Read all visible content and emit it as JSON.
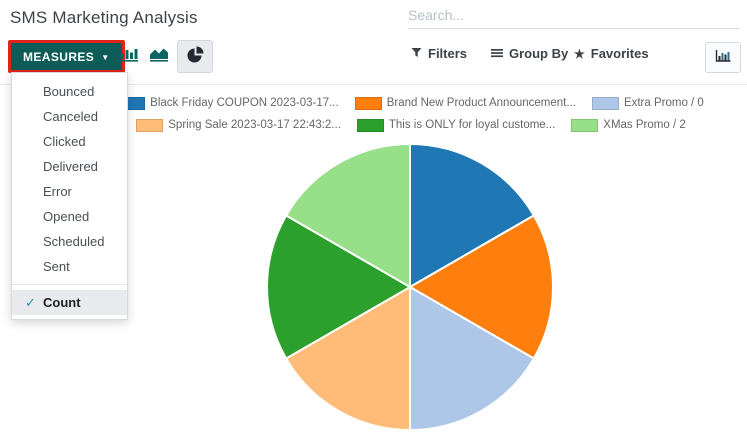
{
  "header": {
    "title": "SMS Marketing Analysis",
    "search": {
      "placeholder": "Search..."
    }
  },
  "toolbar": {
    "measures": {
      "label": "MEASURES",
      "caret": "▼",
      "highlight_color": "#e0241c",
      "button_color": "#0e5c58"
    },
    "chart_type_buttons": {
      "active": "pie"
    },
    "filters_label": "Filters",
    "group_by_label": "Group By",
    "favorites_label": "Favorites",
    "favorites_star": "★"
  },
  "measures_menu": {
    "items": [
      "Bounced",
      "Canceled",
      "Clicked",
      "Delivered",
      "Error",
      "Opened",
      "Scheduled",
      "Sent"
    ],
    "checked_item": {
      "label": "Count",
      "checkmark": "✓"
    }
  },
  "legend": {
    "rows": [
      {
        "items": [
          {
            "label": "Black Friday COUPON 2023-03-17...",
            "color": "#1f77b4"
          },
          {
            "label": "Brand New Product Announcement...",
            "color": "#ff7f0e"
          },
          {
            "label": "Extra Promo / 0",
            "color": "#aec7e8"
          }
        ]
      },
      {
        "items": [
          {
            "label": "Spring Sale 2023-03-17 22:43:2...",
            "color": "#ffbb78"
          },
          {
            "label": "This is ONLY for loyal custome...",
            "color": "#2ca02c"
          },
          {
            "label": "XMas Promo / 2",
            "color": "#98df8a"
          }
        ]
      }
    ]
  },
  "chart_data": {
    "type": "pie",
    "title": "SMS Marketing Analysis",
    "measure": "Count",
    "labels": [
      "Black Friday COUPON 2023-03-17...",
      "Brand New Product Announcement...",
      "Extra Promo / 0",
      "Spring Sale 2023-03-17 22:43:2...",
      "This is ONLY for loyal custome...",
      "XMas Promo / 2"
    ],
    "values": [
      1,
      1,
      1,
      1,
      1,
      1
    ],
    "colors": [
      "#1f77b4",
      "#ff7f0e",
      "#aec7e8",
      "#ffbb78",
      "#2ca02c",
      "#98df8a"
    ],
    "legend_position": "top",
    "start_angle_deg": -90,
    "direction": "clockwise"
  },
  "colors": {
    "primary_teal": "#0e5c58",
    "annotation_red": "#e0241c",
    "menu_check_teal": "#1f95a8"
  }
}
